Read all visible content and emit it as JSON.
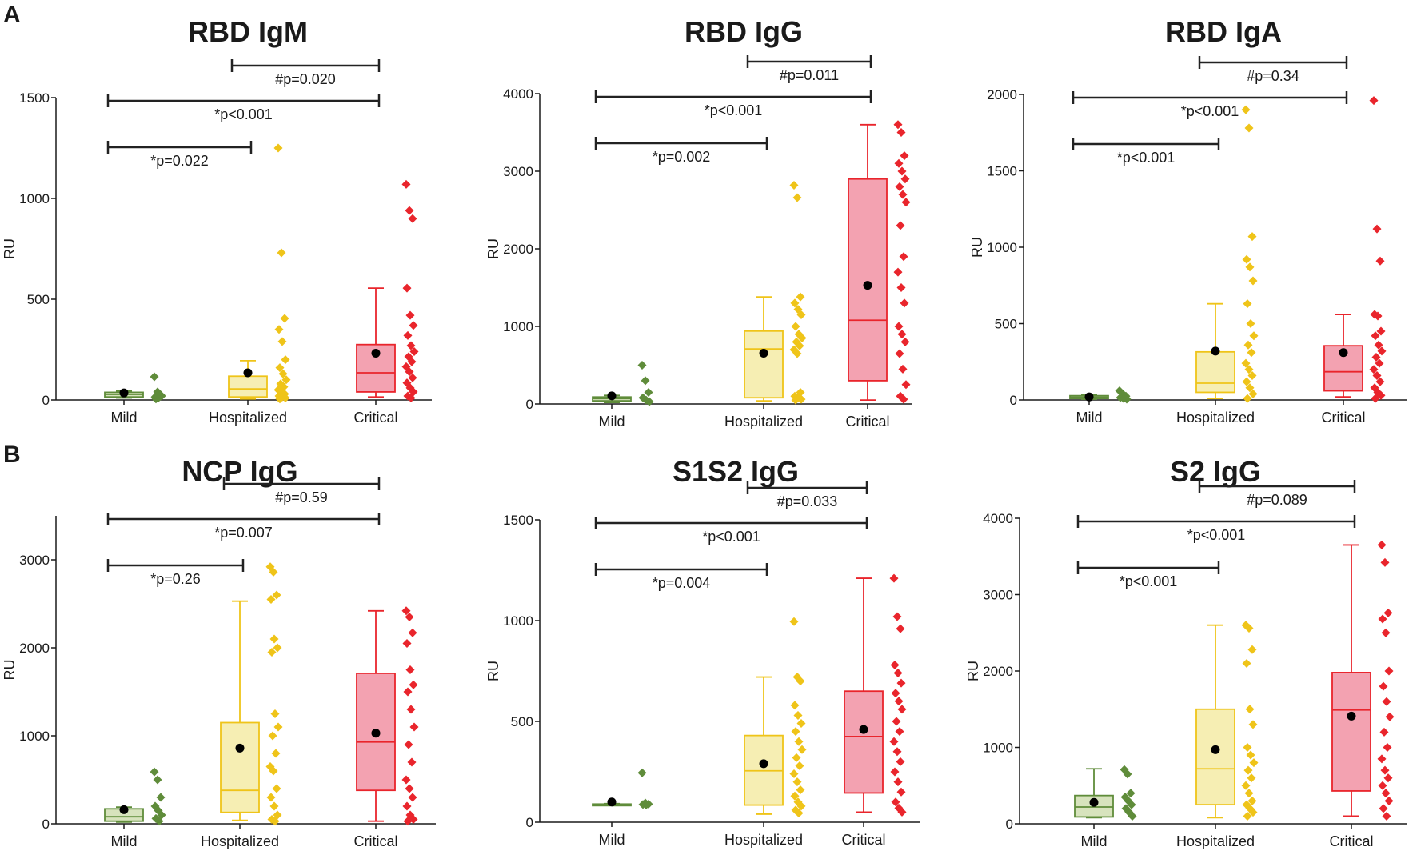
{
  "panel_labels": [
    "A",
    "B"
  ],
  "legend_groups": [
    "Mild",
    "Hospitalized",
    "Critical"
  ],
  "colors": {
    "Mild": {
      "fill": "#d7e3bd",
      "stroke": "#5f8c3a",
      "dot": "#5f8c3a"
    },
    "Hospitalized": {
      "fill": "#f6eeb3",
      "stroke": "#efc419",
      "dot": "#efc419"
    },
    "Critical": {
      "fill": "#f3a2b1",
      "stroke": "#e9252c",
      "dot": "#e9252c"
    },
    "mean": "#000000",
    "axis": "#1a1a1a"
  },
  "chart_data": [
    {
      "type": "box",
      "title": "RBD IgM",
      "ylabel": "RU",
      "xlabel": "",
      "ylim": [
        0,
        1500
      ],
      "yticks": [
        0,
        500,
        1000,
        1500
      ],
      "categories": [
        "Mild",
        "Hospitalized",
        "Critical"
      ],
      "boxes": [
        {
          "min": 10,
          "q1": 15,
          "median": 28,
          "q3": 38,
          "max": 45,
          "mean": 35
        },
        {
          "min": 5,
          "q1": 15,
          "median": 55,
          "q3": 118,
          "max": 195,
          "mean": 135
        },
        {
          "min": 15,
          "q1": 40,
          "median": 135,
          "q3": 275,
          "max": 555,
          "mean": 232
        }
      ],
      "points": [
        [
          115,
          40,
          25,
          15,
          10,
          20,
          5
        ],
        [
          1250,
          730,
          405,
          350,
          290,
          200,
          160,
          130,
          100,
          80,
          65,
          50,
          40,
          30,
          20,
          15,
          10,
          5
        ],
        [
          1070,
          940,
          900,
          555,
          420,
          370,
          320,
          270,
          240,
          215,
          190,
          165,
          140,
          110,
          85,
          60,
          40,
          20,
          10
        ]
      ],
      "comparisons": [
        {
          "from": 1,
          "to": 2,
          "label": "#p=0.020"
        },
        {
          "from": 0,
          "to": 2,
          "label": "*p<0.001"
        },
        {
          "from": 0,
          "to": 1,
          "label": "*p=0.022"
        }
      ]
    },
    {
      "type": "box",
      "title": "RBD IgG",
      "ylabel": "RU",
      "xlabel": "",
      "ylim": [
        0,
        4000
      ],
      "yticks": [
        0,
        1000,
        2000,
        3000,
        4000
      ],
      "categories": [
        "Mild",
        "Hospitalized",
        "Critical"
      ],
      "boxes": [
        {
          "min": 20,
          "q1": 40,
          "median": 70,
          "q3": 90,
          "max": 110,
          "mean": 105
        },
        {
          "min": 40,
          "q1": 80,
          "median": 710,
          "q3": 940,
          "max": 1380,
          "mean": 655
        },
        {
          "min": 50,
          "q1": 300,
          "median": 1080,
          "q3": 2900,
          "max": 3600,
          "mean": 1530
        }
      ],
      "points": [
        [
          500,
          300,
          150,
          80,
          50,
          30
        ],
        [
          2820,
          2660,
          1380,
          1300,
          1220,
          1150,
          1000,
          900,
          850,
          800,
          750,
          700,
          650,
          150,
          100,
          80,
          60,
          50
        ],
        [
          3600,
          3500,
          3200,
          3100,
          3000,
          2900,
          2800,
          2700,
          2600,
          2300,
          1900,
          1700,
          1500,
          1300,
          1000,
          900,
          800,
          650,
          450,
          250,
          100,
          60
        ]
      ],
      "comparisons": [
        {
          "from": 1,
          "to": 2,
          "label": "#p=0.011"
        },
        {
          "from": 0,
          "to": 2,
          "label": "*p<0.001"
        },
        {
          "from": 0,
          "to": 1,
          "label": "*p=0.002"
        }
      ]
    },
    {
      "type": "box",
      "title": "RBD IgA",
      "ylabel": "RU",
      "xlabel": "",
      "ylim": [
        0,
        2000
      ],
      "yticks": [
        0,
        500,
        1000,
        1500,
        2000
      ],
      "categories": [
        "Mild",
        "Hospitalized",
        "Critical"
      ],
      "boxes": [
        {
          "min": 5,
          "q1": 10,
          "median": 18,
          "q3": 28,
          "max": 35,
          "mean": 20
        },
        {
          "min": 10,
          "q1": 50,
          "median": 110,
          "q3": 315,
          "max": 630,
          "mean": 320
        },
        {
          "min": 20,
          "q1": 60,
          "median": 185,
          "q3": 355,
          "max": 560,
          "mean": 310
        }
      ],
      "points": [
        [
          60,
          40,
          25,
          15,
          10,
          5
        ],
        [
          1900,
          1780,
          1070,
          920,
          870,
          780,
          630,
          500,
          420,
          360,
          310,
          240,
          200,
          160,
          120,
          80,
          40,
          10
        ],
        [
          1960,
          1120,
          910,
          560,
          550,
          450,
          420,
          360,
          320,
          280,
          240,
          200,
          160,
          120,
          80,
          50,
          30,
          10
        ]
      ],
      "comparisons": [
        {
          "from": 1,
          "to": 2,
          "label": "#p=0.34"
        },
        {
          "from": 0,
          "to": 2,
          "label": "*p<0.001"
        },
        {
          "from": 0,
          "to": 1,
          "label": "*p<0.001"
        }
      ]
    },
    {
      "type": "box",
      "title": "NCP IgG",
      "ylabel": "RU",
      "xlabel": "",
      "ylim": [
        0,
        3500
      ],
      "yticks": [
        0,
        1000,
        2000,
        3000
      ],
      "categories": [
        "Mild",
        "Hospitalized",
        "Critical"
      ],
      "boxes": [
        {
          "min": 20,
          "q1": 30,
          "median": 80,
          "q3": 170,
          "max": 190,
          "mean": 160
        },
        {
          "min": 40,
          "q1": 130,
          "median": 380,
          "q3": 1150,
          "max": 2530,
          "mean": 860
        },
        {
          "min": 30,
          "q1": 380,
          "median": 930,
          "q3": 1710,
          "max": 2420,
          "mean": 1030
        }
      ],
      "points": [
        [
          590,
          500,
          300,
          200,
          150,
          100,
          60,
          30
        ],
        [
          2920,
          2860,
          2600,
          2550,
          2100,
          2000,
          1950,
          1250,
          1100,
          1000,
          800,
          650,
          600,
          400,
          300,
          200,
          100,
          50,
          30
        ],
        [
          2420,
          2350,
          2170,
          2050,
          1750,
          1580,
          1500,
          1300,
          1100,
          900,
          700,
          500,
          400,
          300,
          200,
          100,
          50,
          30
        ]
      ],
      "comparisons": [
        {
          "from": 1,
          "to": 2,
          "label": "#p=0.59"
        },
        {
          "from": 0,
          "to": 2,
          "label": "*p=0.007"
        },
        {
          "from": 0,
          "to": 1,
          "label": "*p=0.26"
        }
      ]
    },
    {
      "type": "box",
      "title": "S1S2 IgG",
      "ylabel": "RU",
      "xlabel": "",
      "ylim": [
        0,
        1500
      ],
      "yticks": [
        0,
        500,
        1000,
        1500
      ],
      "categories": [
        "Mild",
        "Hospitalized",
        "Critical"
      ],
      "boxes": [
        {
          "min": 88,
          "q1": 88,
          "median": 88,
          "q3": 90,
          "max": 92,
          "mean": 100
        },
        {
          "min": 40,
          "q1": 85,
          "median": 255,
          "q3": 430,
          "max": 720,
          "mean": 290
        },
        {
          "min": 50,
          "q1": 145,
          "median": 425,
          "q3": 650,
          "max": 1210,
          "mean": 460
        }
      ],
      "points": [
        [
          245,
          95,
          90,
          88,
          86
        ],
        [
          995,
          720,
          700,
          580,
          530,
          490,
          450,
          400,
          360,
          320,
          280,
          240,
          200,
          160,
          130,
          100,
          80,
          60,
          45
        ],
        [
          1210,
          1020,
          960,
          780,
          740,
          690,
          640,
          600,
          560,
          500,
          450,
          400,
          350,
          300,
          250,
          200,
          150,
          100,
          70,
          50
        ]
      ],
      "comparisons": [
        {
          "from": 1,
          "to": 2,
          "label": "#p=0.033"
        },
        {
          "from": 0,
          "to": 2,
          "label": "*p<0.001"
        },
        {
          "from": 0,
          "to": 1,
          "label": "*p=0.004"
        }
      ]
    },
    {
      "type": "box",
      "title": "S2 IgG",
      "ylabel": "RU",
      "xlabel": "",
      "ylim": [
        0,
        4000
      ],
      "yticks": [
        0,
        1000,
        2000,
        3000,
        4000
      ],
      "categories": [
        "Mild",
        "Hospitalized",
        "Critical"
      ],
      "boxes": [
        {
          "min": 80,
          "q1": 90,
          "median": 220,
          "q3": 370,
          "max": 720,
          "mean": 280
        },
        {
          "min": 80,
          "q1": 250,
          "median": 720,
          "q3": 1500,
          "max": 2600,
          "mean": 970
        },
        {
          "min": 100,
          "q1": 430,
          "median": 1490,
          "q3": 1980,
          "max": 3650,
          "mean": 1410
        }
      ],
      "points": [
        [
          710,
          650,
          400,
          350,
          300,
          250,
          200,
          150,
          100
        ],
        [
          2600,
          2560,
          2280,
          2100,
          1500,
          1300,
          1000,
          900,
          800,
          700,
          600,
          500,
          400,
          300,
          250,
          200,
          150,
          100
        ],
        [
          3650,
          3420,
          2760,
          2680,
          2500,
          2000,
          1800,
          1600,
          1400,
          1200,
          1000,
          850,
          700,
          600,
          500,
          400,
          300,
          200,
          100
        ]
      ],
      "comparisons": [
        {
          "from": 1,
          "to": 2,
          "label": "#p=0.089"
        },
        {
          "from": 0,
          "to": 2,
          "label": "*p<0.001"
        },
        {
          "from": 0,
          "to": 1,
          "label": "*p<0.001"
        }
      ]
    }
  ]
}
